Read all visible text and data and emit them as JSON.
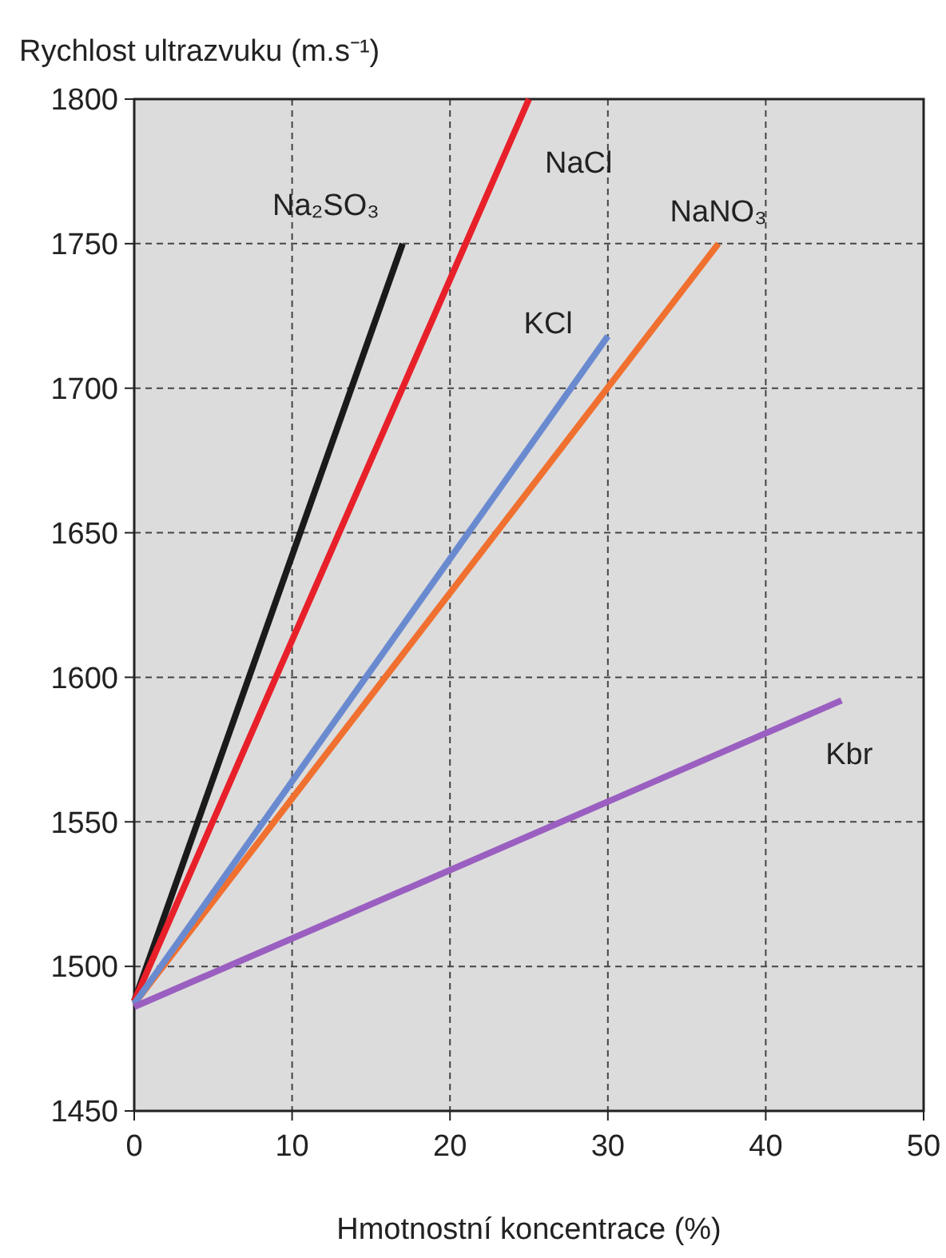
{
  "chart_data": {
    "type": "line",
    "ylabel": "Rychlost ultrazvuku (m.s⁻¹)",
    "xlabel": "Hmotnostní koncentrace (%)",
    "xlim": [
      0,
      50
    ],
    "xticks": [
      0,
      10,
      20,
      30,
      40,
      50
    ],
    "ylim": [
      1450,
      1800
    ],
    "yticks": [
      1450,
      1500,
      1550,
      1600,
      1650,
      1700,
      1750,
      1800
    ],
    "grid": true,
    "line_style": "solid",
    "marker": "none",
    "series": [
      {
        "name": "Na₂SO₃",
        "color": "#1a1a1a",
        "x": [
          0,
          17
        ],
        "values": [
          1488,
          1750
        ]
      },
      {
        "name": "NaCl",
        "color": "#e8202a",
        "x": [
          0,
          25
        ],
        "values": [
          1488,
          1800
        ]
      },
      {
        "name": "NaNO₃",
        "color": "#f07030",
        "x": [
          0,
          37
        ],
        "values": [
          1487,
          1750
        ]
      },
      {
        "name": "KCl",
        "color": "#6a8ad0",
        "x": [
          0,
          30
        ],
        "values": [
          1487,
          1718
        ]
      },
      {
        "name": "Kbr",
        "color": "#9a5fc0",
        "x": [
          0,
          44.8
        ],
        "values": [
          1486,
          1592
        ]
      }
    ]
  }
}
